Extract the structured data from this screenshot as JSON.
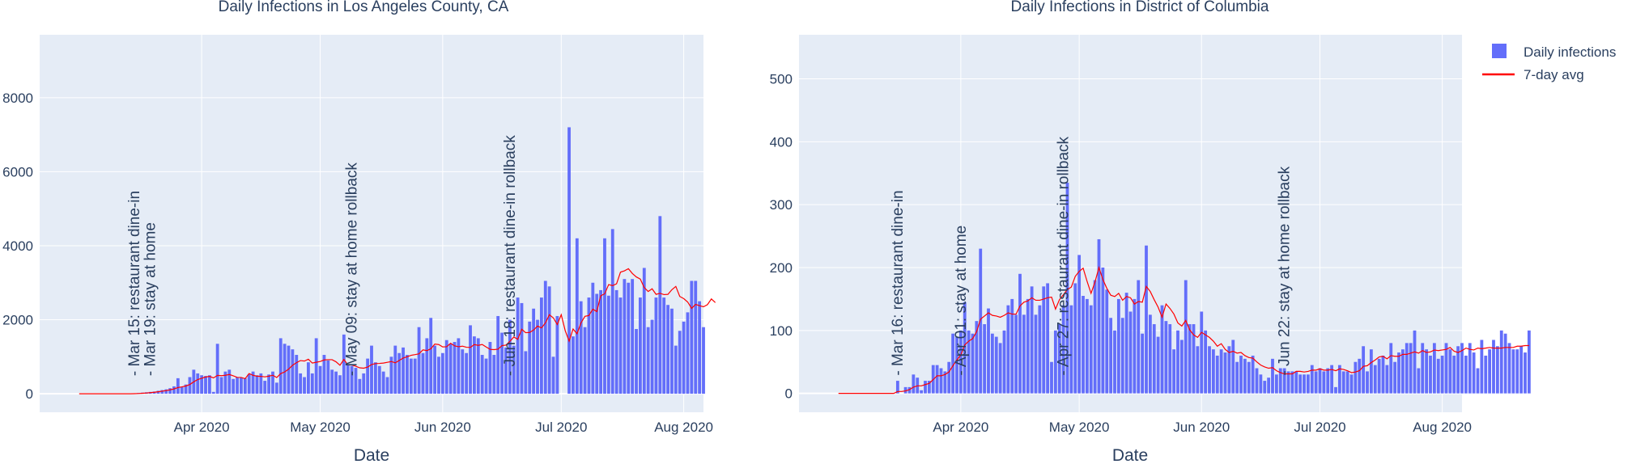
{
  "chart_data": [
    {
      "type": "bar",
      "title": "Daily Infections in Los Angeles County, CA",
      "xlabel": "Date",
      "ylabel": "",
      "x_range": [
        "2020-02-20",
        "2020-08-06"
      ],
      "ylim": [
        -500,
        9700
      ],
      "x_ticks": [
        {
          "date": "2020-04-01",
          "label": "Apr 2020"
        },
        {
          "date": "2020-05-01",
          "label": "May 2020"
        },
        {
          "date": "2020-06-01",
          "label": "Jun 2020"
        },
        {
          "date": "2020-07-01",
          "label": "Jul 2020"
        },
        {
          "date": "2020-08-01",
          "label": "Aug 2020"
        }
      ],
      "y_ticks": [
        0,
        2000,
        4000,
        6000,
        8000
      ],
      "grid": true,
      "start_date": "2020-03-01",
      "series": [
        {
          "name": "Daily infections",
          "type": "bar",
          "color": "#636efa",
          "values": [
            0,
            0,
            0,
            0,
            0,
            0,
            0,
            0,
            0,
            0,
            0,
            0,
            0,
            0,
            0,
            20,
            30,
            40,
            50,
            60,
            80,
            100,
            120,
            150,
            200,
            420,
            180,
            250,
            450,
            650,
            550,
            500,
            480,
            500,
            50,
            1350,
            450,
            600,
            650,
            400,
            450,
            430,
            420,
            530,
            600,
            500,
            550,
            350,
            520,
            600,
            300,
            1500,
            1350,
            1300,
            1200,
            1050,
            550,
            450,
            850,
            550,
            1500,
            750,
            1050,
            900,
            650,
            600,
            500,
            1600,
            800,
            750,
            700,
            400,
            550,
            950,
            1300,
            850,
            750,
            600,
            450,
            1000,
            1300,
            1100,
            1250,
            1050,
            950,
            950,
            1800,
            1100,
            1500,
            2050,
            1300,
            1000,
            1100,
            1450,
            1350,
            1400,
            1500,
            1200,
            1100,
            1850,
            1550,
            1500,
            1050,
            950,
            1400,
            1050,
            2100,
            1650,
            1250,
            2000,
            1300,
            2600,
            2450,
            1150,
            1950,
            2300,
            2000,
            2600,
            3050,
            2900,
            1000,
            2100,
            0,
            0,
            7200,
            1550,
            4200,
            2500,
            1800,
            2600,
            3000,
            2700,
            2800,
            4200,
            2650,
            4450,
            2800,
            2600,
            3100,
            3000,
            3100,
            1750,
            2600,
            3400,
            1800,
            2000,
            2600,
            4800,
            2600,
            2400,
            2300,
            1300,
            1700,
            1950,
            2200,
            3050,
            3050,
            2500,
            1800
          ]
        },
        {
          "name": "7-day avg",
          "type": "line",
          "color": "#ff0000",
          "values": [
            0,
            0,
            0,
            0,
            0,
            0,
            0,
            0,
            0,
            0,
            0,
            0,
            0,
            0,
            3,
            7,
            13,
            20,
            29,
            40,
            54,
            69,
            86,
            106,
            131,
            167,
            186,
            210,
            250,
            323,
            384,
            418,
            453,
            469,
            429,
            497,
            489,
            500,
            520,
            483,
            443,
            440,
            407,
            546,
            499,
            474,
            470,
            457,
            475,
            500,
            438,
            545,
            589,
            665,
            771,
            840,
            896,
            884,
            934,
            829,
            851,
            871,
            914,
            921,
            921,
            864,
            771,
            928,
            779,
            776,
            743,
            701,
            691,
            721,
            790,
            815,
            820,
            829,
            850,
            871,
            836,
            900,
            964,
            1000,
            1039,
            1057,
            1080,
            1186,
            1165,
            1215,
            1342,
            1329,
            1267,
            1271,
            1364,
            1294,
            1271,
            1286,
            1257,
            1252,
            1329,
            1307,
            1331,
            1264,
            1200,
            1193,
            1204,
            1300,
            1314,
            1414,
            1533,
            1471,
            1743,
            1650,
            1657,
            1721,
            1829,
            1779,
            1914,
            2136,
            2050,
            1871,
            2136,
            1707,
            1421,
            1750,
            1621,
            1914,
            2093,
            2114,
            2286,
            2221,
            2650,
            2700,
            2950,
            2921,
            2971,
            3286,
            3321,
            3379,
            3250,
            3157,
            3100,
            2871,
            2764,
            2836,
            2686,
            2714,
            2679,
            2686,
            2811,
            2900,
            2629,
            2571,
            2479,
            2307,
            2414,
            2379,
            2350,
            2407,
            2563,
            2463
          ]
        }
      ],
      "annotations": [
        {
          "date": "2020-03-15",
          "text": "- Mar 15: restaurant dine-in"
        },
        {
          "date": "2020-03-19",
          "text": "- Mar 19: stay at home"
        },
        {
          "date": "2020-05-09",
          "text": "- May 09: stay at home rollback"
        },
        {
          "date": "2020-06-18",
          "text": "- Jun 18: restaurant dine-in rollback"
        }
      ]
    },
    {
      "type": "bar",
      "title": "Daily Infections in District of Columbia",
      "xlabel": "Date",
      "ylabel": "",
      "x_range": [
        "2020-02-20",
        "2020-08-06"
      ],
      "ylim": [
        -30,
        570
      ],
      "x_ticks": [
        {
          "date": "2020-04-01",
          "label": "Apr 2020"
        },
        {
          "date": "2020-05-01",
          "label": "May 2020"
        },
        {
          "date": "2020-06-01",
          "label": "Jun 2020"
        },
        {
          "date": "2020-07-01",
          "label": "Jul 2020"
        },
        {
          "date": "2020-08-01",
          "label": "Aug 2020"
        }
      ],
      "y_ticks": [
        0,
        100,
        200,
        300,
        400,
        500
      ],
      "grid": true,
      "start_date": "2020-03-01",
      "series": [
        {
          "name": "Daily infections",
          "type": "bar",
          "color": "#636efa",
          "values": [
            0,
            0,
            0,
            0,
            0,
            0,
            0,
            0,
            0,
            0,
            0,
            0,
            0,
            0,
            0,
            20,
            0,
            10,
            10,
            30,
            25,
            5,
            20,
            20,
            45,
            45,
            40,
            35,
            50,
            95,
            90,
            100,
            145,
            100,
            95,
            115,
            230,
            110,
            135,
            95,
            90,
            80,
            100,
            140,
            150,
            125,
            190,
            125,
            150,
            170,
            125,
            140,
            170,
            175,
            50,
            100,
            110,
            140,
            335,
            140,
            175,
            220,
            155,
            150,
            140,
            180,
            245,
            200,
            165,
            120,
            100,
            150,
            120,
            160,
            130,
            150,
            180,
            95,
            235,
            125,
            110,
            90,
            140,
            115,
            110,
            70,
            100,
            85,
            180,
            110,
            110,
            75,
            130,
            100,
            75,
            70,
            60,
            70,
            65,
            75,
            85,
            50,
            60,
            55,
            50,
            60,
            40,
            30,
            20,
            25,
            55,
            30,
            40,
            40,
            35,
            35,
            35,
            30,
            30,
            30,
            45,
            35,
            40,
            35,
            40,
            45,
            10,
            45,
            35,
            35,
            30,
            50,
            55,
            75,
            35,
            70,
            45,
            55,
            60,
            45,
            80,
            50,
            65,
            70,
            80,
            80,
            100,
            40,
            80,
            70,
            60,
            80,
            55,
            60,
            80,
            70,
            60,
            75,
            80,
            60,
            80,
            65,
            40,
            85,
            60,
            70,
            85,
            75,
            100,
            95,
            80,
            70,
            70,
            75,
            65,
            100
          ]
        },
        {
          "name": "7-day avg",
          "type": "line",
          "color": "#ff0000",
          "values": [
            0,
            0,
            0,
            0,
            0,
            0,
            0,
            0,
            0,
            0,
            0,
            0,
            0,
            0,
            0,
            3,
            3,
            4,
            6,
            10,
            12,
            12,
            14,
            16,
            22,
            28,
            28,
            30,
            34,
            44,
            53,
            61,
            77,
            83,
            87,
            98,
            118,
            123,
            128,
            124,
            123,
            121,
            124,
            128,
            126,
            126,
            139,
            145,
            147,
            152,
            148,
            148,
            150,
            152,
            153,
            134,
            149,
            157,
            165,
            169,
            186,
            194,
            199,
            178,
            159,
            177,
            200,
            181,
            167,
            156,
            154,
            159,
            148,
            154,
            152,
            142,
            146,
            145,
            170,
            162,
            149,
            137,
            121,
            142,
            135,
            126,
            112,
            107,
            116,
            101,
            93,
            89,
            97,
            93,
            89,
            83,
            75,
            79,
            70,
            65,
            67,
            64,
            65,
            60,
            57,
            56,
            50,
            45,
            42,
            40,
            41,
            36,
            33,
            31,
            31,
            31,
            35,
            35,
            34,
            35,
            37,
            37,
            39,
            37,
            37,
            38,
            36,
            39,
            38,
            36,
            33,
            34,
            36,
            43,
            44,
            49,
            53,
            58,
            59,
            55,
            60,
            59,
            59,
            62,
            62,
            64,
            66,
            64,
            68,
            65,
            66,
            69,
            68,
            69,
            70,
            73,
            67,
            65,
            68,
            72,
            70,
            69,
            72,
            71,
            72,
            73,
            72,
            72,
            72,
            73,
            73,
            73,
            75,
            75,
            76,
            76
          ]
        }
      ],
      "annotations": [
        {
          "date": "2020-03-16",
          "text": "- Mar 16: restaurant dine-in"
        },
        {
          "date": "2020-04-01",
          "text": "- Apr 01: stay at home"
        },
        {
          "date": "2020-04-27",
          "text": "- Apr 27: restaurant dine-in rollback"
        },
        {
          "date": "2020-06-22",
          "text": "- Jun 22: stay at home rollback"
        }
      ]
    }
  ],
  "legend": {
    "items": [
      {
        "label": "Daily infections",
        "symbol": "square",
        "color": "#636efa"
      },
      {
        "label": "7-day avg",
        "symbol": "line",
        "color": "#ff0000"
      }
    ],
    "placement": "top-right"
  },
  "style": {
    "plot_bg": "#e5ecf6",
    "grid_color": "#ffffff",
    "text_color": "#2a3f5f"
  }
}
